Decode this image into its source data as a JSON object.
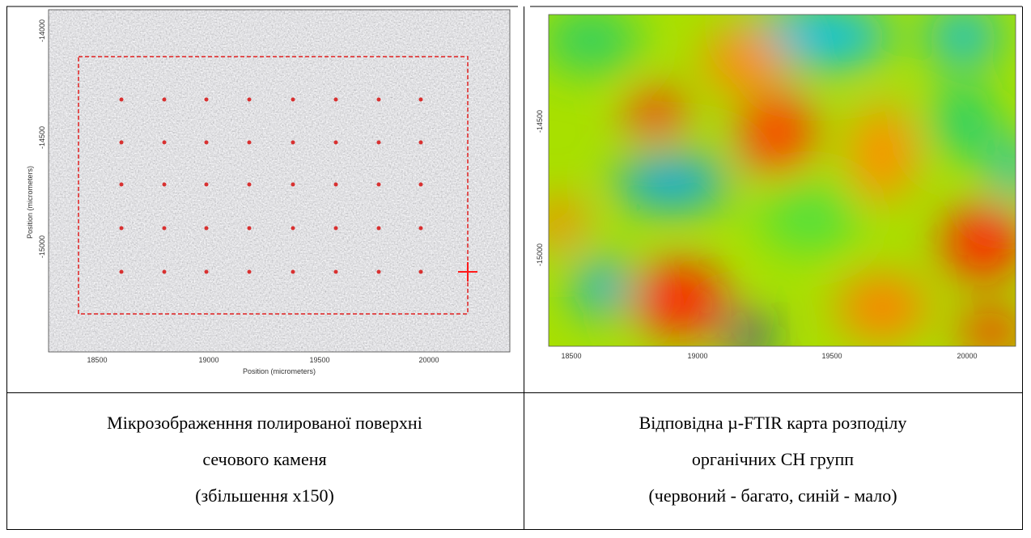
{
  "table": {
    "images": [
      {
        "xticks": [
          "18500",
          "19000",
          "19500",
          "20000"
        ],
        "yticks": [
          "-14000",
          "-14500",
          "-15000"
        ],
        "x_axis_label": "Position (micrometers)",
        "y_axis_label": "Position (micrometers)"
      },
      {
        "xticks": [
          "18500",
          "19000",
          "19500",
          "20000"
        ],
        "yticks": [
          "-14500",
          "-15000"
        ]
      }
    ],
    "captions": [
      [
        "Мікрозображенння полированої поверхні",
        "сечового каменя",
        "(збільшення х150)"
      ],
      [
        "Відповідна µ-FTIR карта розподілу",
        "органічних СН групп",
        "(червоний - багато, синій - мало)"
      ]
    ]
  }
}
